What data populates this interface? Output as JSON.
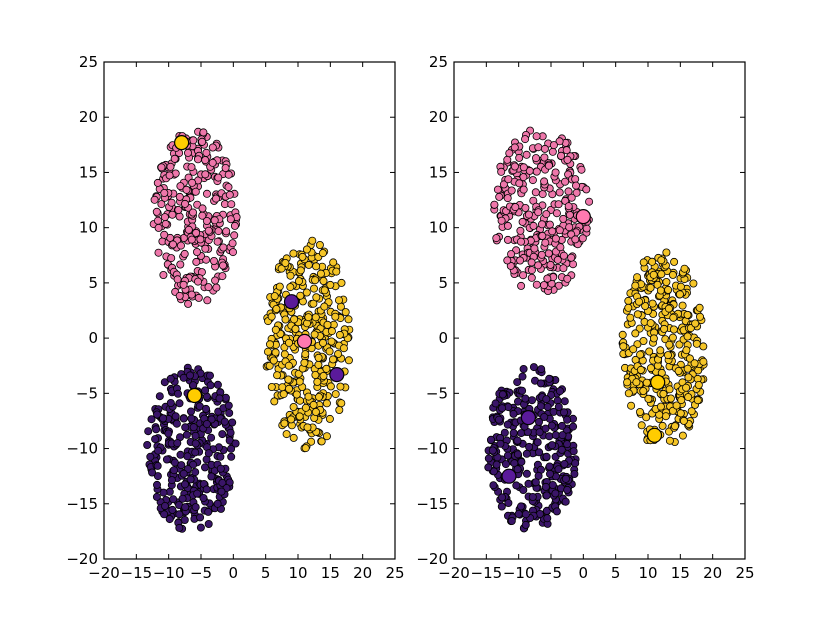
{
  "colors": {
    "pink": "#ee77aa",
    "yellow": "#f5c527",
    "purple": "#3a1568",
    "big_purple": "#5a1a9a",
    "big_pink": "#ff79b0",
    "big_yellow": "#ffcc00"
  },
  "chart_data": [
    {
      "type": "scatter",
      "title": "",
      "xlabel": "",
      "ylabel": "",
      "xlim": [
        -20,
        25
      ],
      "ylim": [
        -20,
        25
      ],
      "xticks": [
        "−20",
        "−15",
        "−10",
        "−5",
        "0",
        "5",
        "10",
        "15",
        "20",
        "25"
      ],
      "yticks": [
        "−20",
        "−15",
        "−10",
        "−5",
        "0",
        "5",
        "10",
        "15",
        "20",
        "25"
      ],
      "grid": false,
      "clusters": [
        {
          "color": "pink",
          "center": [
            -6,
            11
          ],
          "extent": [
            6.5,
            8
          ],
          "count": 300
        },
        {
          "color": "yellow",
          "center": [
            11.5,
            -0.5
          ],
          "extent": [
            6.5,
            9.5
          ],
          "count": 380
        },
        {
          "color": "purple",
          "center": [
            -6.5,
            -10
          ],
          "extent": [
            7,
            7.5
          ],
          "count": 330
        }
      ],
      "highlight_points": [
        {
          "x": -8,
          "y": 17.7,
          "color": "big_yellow"
        },
        {
          "x": 9,
          "y": 3.3,
          "color": "big_purple"
        },
        {
          "x": 11,
          "y": -0.3,
          "color": "big_pink"
        },
        {
          "x": 16,
          "y": -3.3,
          "color": "big_purple"
        },
        {
          "x": -6,
          "y": -5.2,
          "color": "big_yellow"
        }
      ]
    },
    {
      "type": "scatter",
      "title": "",
      "xlabel": "",
      "ylabel": "",
      "xlim": [
        -20,
        25
      ],
      "ylim": [
        -20,
        25
      ],
      "xticks": [
        "−20",
        "−15",
        "−10",
        "−5",
        "0",
        "5",
        "10",
        "15",
        "20",
        "25"
      ],
      "yticks": [
        "−20",
        "−15",
        "−10",
        "−5",
        "0",
        "5",
        "10",
        "15",
        "20",
        "25"
      ],
      "grid": false,
      "clusters": [
        {
          "color": "pink",
          "center": [
            -6.5,
            11.5
          ],
          "extent": [
            7.5,
            7.5
          ],
          "count": 300
        },
        {
          "color": "yellow",
          "center": [
            12.5,
            -1
          ],
          "extent": [
            6.5,
            9
          ],
          "count": 380
        },
        {
          "color": "purple",
          "center": [
            -8,
            -10
          ],
          "extent": [
            7,
            7.5
          ],
          "count": 330
        }
      ],
      "highlight_points": [
        {
          "x": 0,
          "y": 11,
          "color": "big_pink"
        },
        {
          "x": 11.5,
          "y": -4,
          "color": "big_yellow"
        },
        {
          "x": 11,
          "y": -8.8,
          "color": "big_yellow"
        },
        {
          "x": -8.5,
          "y": -7.2,
          "color": "big_purple"
        },
        {
          "x": -11.5,
          "y": -12.5,
          "color": "big_purple"
        }
      ]
    }
  ]
}
